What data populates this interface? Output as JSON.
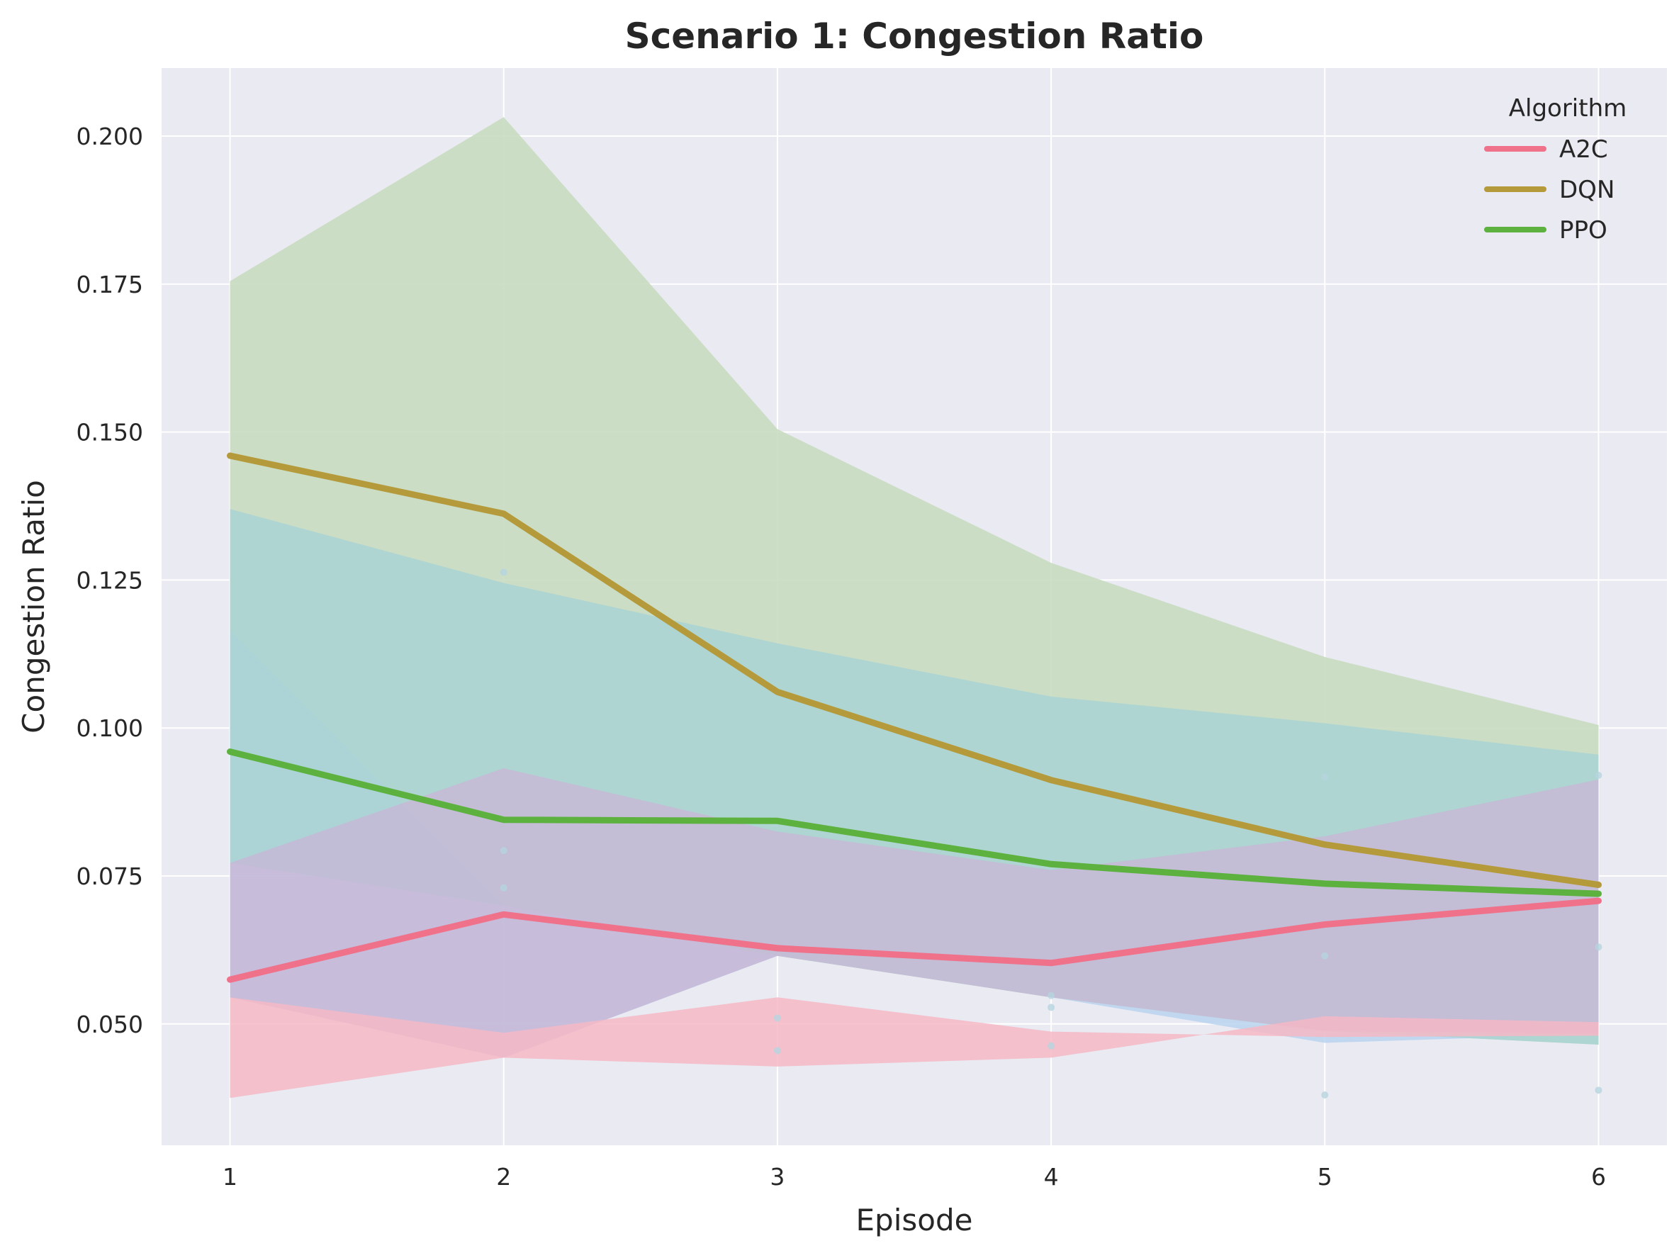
{
  "chart_data": {
    "type": "line",
    "title": "Scenario 1: Congestion Ratio",
    "xlabel": "Episode",
    "ylabel": "Congestion Ratio",
    "x": [
      1,
      2,
      3,
      4,
      5,
      6
    ],
    "xlim": [
      0.75,
      6.25
    ],
    "ylim": [
      0.0295,
      0.2115
    ],
    "yticks": [
      0.05,
      0.075,
      0.1,
      0.125,
      0.15,
      0.175,
      0.2
    ],
    "ytick_labels": [
      "0.050",
      "0.075",
      "0.100",
      "0.125",
      "0.150",
      "0.175",
      "0.200"
    ],
    "xtick_labels": [
      "1",
      "2",
      "3",
      "4",
      "5",
      "6"
    ],
    "grid": true,
    "legend": {
      "title": "Algorithm",
      "placement": "top-right"
    },
    "series": [
      {
        "name": "A2C",
        "color": "#f0718a",
        "values": [
          0.0575,
          0.0685,
          0.0628,
          0.0603,
          0.0668,
          0.0708
        ],
        "band_low": [
          0.0375,
          0.0443,
          0.0428,
          0.0443,
          0.0513,
          0.0503
        ],
        "band_high": [
          0.0545,
          0.0485,
          0.0545,
          0.0487,
          0.0478,
          0.048
        ],
        "band_color": "#f5b8c6"
      },
      {
        "name": "DQN",
        "color": "#b59a3b",
        "values": [
          0.146,
          0.1362,
          0.1061,
          0.0912,
          0.0803,
          0.0735
        ],
        "band_low": [
          0.0545,
          0.0443,
          0.0615,
          0.0545,
          0.0488,
          0.0483
        ],
        "band_high": [
          0.0772,
          0.0932,
          0.0825,
          0.076,
          0.0817,
          0.0913
        ],
        "band_color": "#c8b6d6"
      },
      {
        "name": "PPO",
        "color": "#5db13e",
        "values": [
          0.096,
          0.0845,
          0.0843,
          0.077,
          0.0737,
          0.072
        ],
        "band_low": [
          0.0772,
          0.07,
          0.0615,
          0.0545,
          0.0488,
          0.0465
        ],
        "band_high": [
          0.1755,
          0.2032,
          0.1505,
          0.1279,
          0.112,
          0.1005
        ],
        "band_color": "#c8dcc0"
      }
    ],
    "extra_bands": [
      {
        "color": "#b9d3ee",
        "low": [
          0.0545,
          0.0443,
          0.0615,
          0.0545,
          0.0468,
          0.0483
        ],
        "high": [
          0.1165,
          0.07,
          0.0615,
          0.0545,
          0.0488,
          0.0503
        ]
      },
      {
        "color": "#a9d4d3",
        "low": [
          0.0772,
          0.07,
          0.0615,
          0.0545,
          0.0488,
          0.0465
        ],
        "high": [
          0.137,
          0.1245,
          0.1143,
          0.1053,
          0.1008,
          0.0955
        ]
      }
    ],
    "scatter_points": [
      {
        "x": 2,
        "y": 0.1263
      },
      {
        "x": 2,
        "y": 0.0793
      },
      {
        "x": 2,
        "y": 0.073
      },
      {
        "x": 3,
        "y": 0.0455
      },
      {
        "x": 3,
        "y": 0.051
      },
      {
        "x": 4,
        "y": 0.0463
      },
      {
        "x": 4,
        "y": 0.0528
      },
      {
        "x": 4,
        "y": 0.0548
      },
      {
        "x": 5,
        "y": 0.0917
      },
      {
        "x": 5,
        "y": 0.038
      },
      {
        "x": 5,
        "y": 0.0615
      },
      {
        "x": 6,
        "y": 0.092
      },
      {
        "x": 6,
        "y": 0.0388
      },
      {
        "x": 6,
        "y": 0.063
      }
    ]
  }
}
